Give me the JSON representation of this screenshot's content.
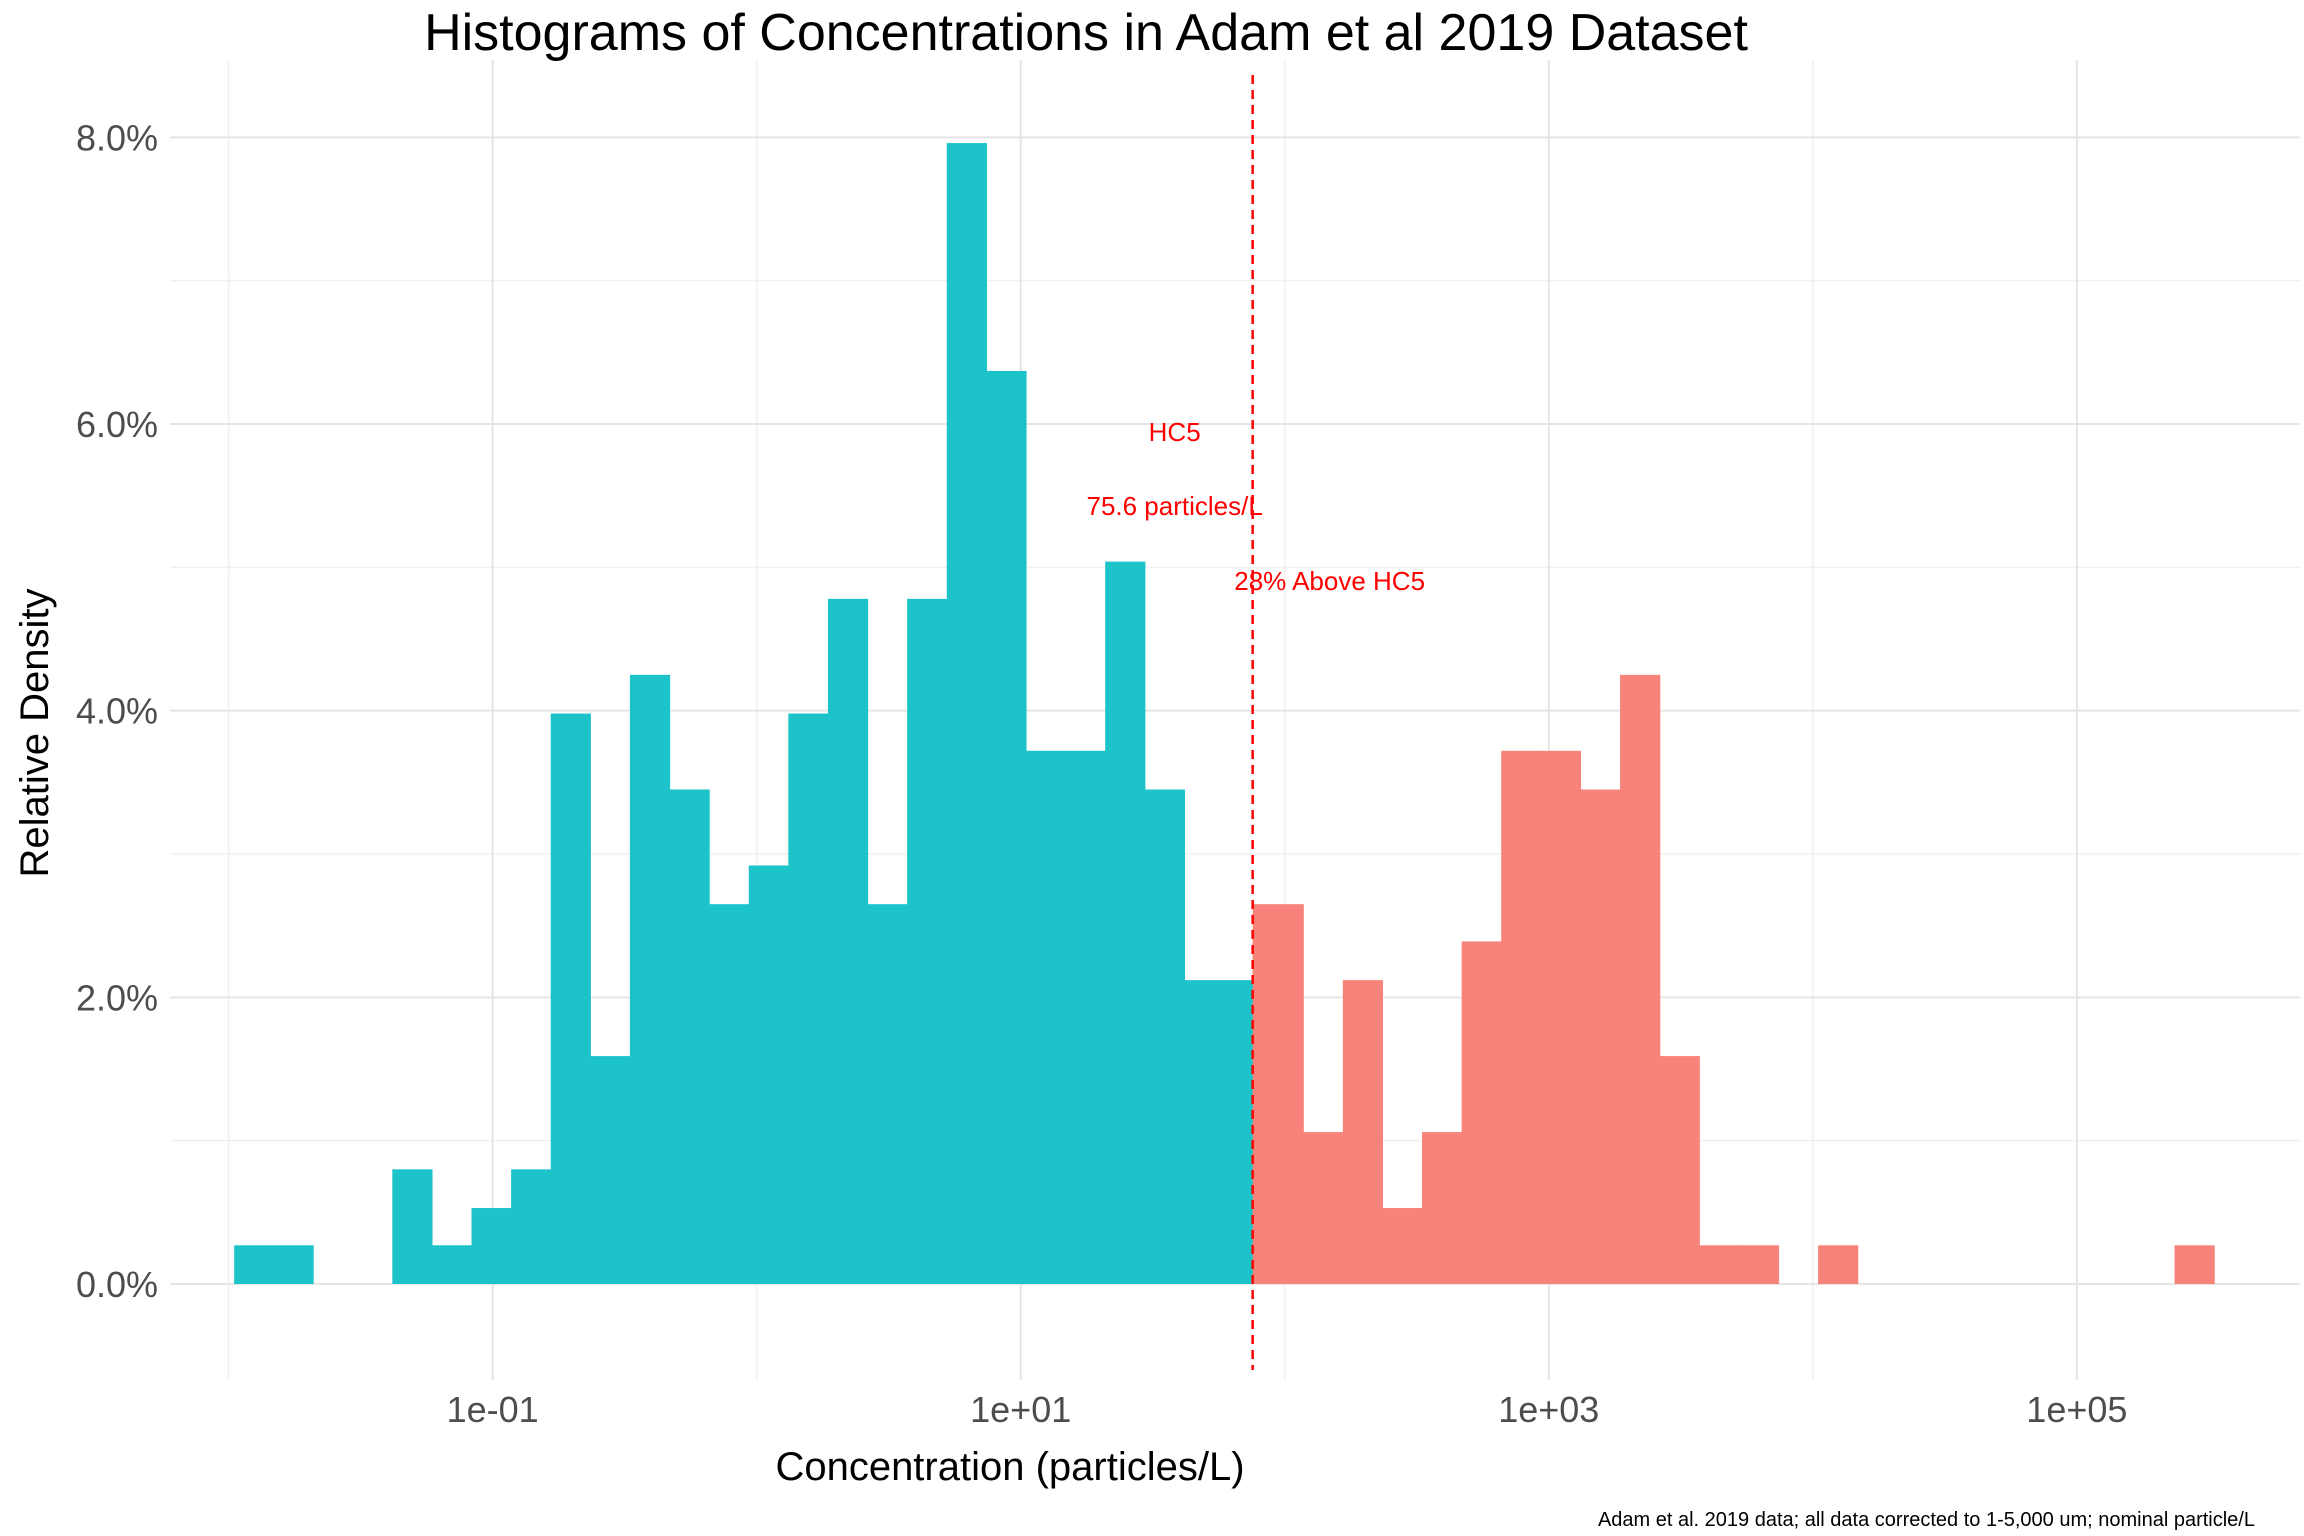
{
  "chart_data": {
    "type": "bar",
    "title": "Histograms of Concentrations in Adam et al 2019 Dataset",
    "xlabel": "Concentration (particles/L)",
    "ylabel": "Relative Density",
    "caption": "Adam et al. 2019 data; all data corrected to 1-5,000 um; nominal particle/L",
    "x_scale": "log10",
    "xlim": [
      0.006,
      700000
    ],
    "ylim": [
      -0.006,
      0.084
    ],
    "grid": true,
    "legend": "none",
    "x_ticks": [
      {
        "value": 0.1,
        "label": "1e-01"
      },
      {
        "value": 10,
        "label": "1e+01"
      },
      {
        "value": 1000,
        "label": "1e+03"
      },
      {
        "value": 100000,
        "label": "1e+05"
      }
    ],
    "y_ticks": [
      {
        "value": 0.0,
        "label": "0.0%"
      },
      {
        "value": 0.02,
        "label": "2.0%"
      },
      {
        "value": 0.04,
        "label": "4.0%"
      },
      {
        "value": 0.06,
        "label": "6.0%"
      },
      {
        "value": 0.08,
        "label": "8.0%"
      }
    ],
    "bin_width_log10": 0.15,
    "series": [
      {
        "color": "#1CC3C9",
        "bins": [
          {
            "x0": 0.0105,
            "x1": 0.0148,
            "value": 0.0027
          },
          {
            "x0": 0.0148,
            "x1": 0.0209,
            "value": 0.0027
          },
          {
            "x0": 0.0417,
            "x1": 0.0589,
            "value": 0.008
          },
          {
            "x0": 0.0589,
            "x1": 0.0832,
            "value": 0.0027
          },
          {
            "x0": 0.0832,
            "x1": 0.1175,
            "value": 0.0053
          },
          {
            "x0": 0.1175,
            "x1": 0.166,
            "value": 0.008
          },
          {
            "x0": 0.166,
            "x1": 0.2344,
            "value": 0.0398
          },
          {
            "x0": 0.2344,
            "x1": 0.3311,
            "value": 0.0159
          },
          {
            "x0": 0.3311,
            "x1": 0.4677,
            "value": 0.0425
          },
          {
            "x0": 0.4677,
            "x1": 0.6607,
            "value": 0.0345
          },
          {
            "x0": 0.6607,
            "x1": 0.9333,
            "value": 0.0265
          },
          {
            "x0": 0.9333,
            "x1": 1.318,
            "value": 0.0292
          },
          {
            "x0": 1.318,
            "x1": 1.862,
            "value": 0.0398
          },
          {
            "x0": 1.862,
            "x1": 2.63,
            "value": 0.0478
          },
          {
            "x0": 2.63,
            "x1": 3.715,
            "value": 0.0265
          },
          {
            "x0": 3.715,
            "x1": 5.248,
            "value": 0.0478
          },
          {
            "x0": 5.248,
            "x1": 7.413,
            "value": 0.0796
          },
          {
            "x0": 7.413,
            "x1": 10.47,
            "value": 0.0637
          },
          {
            "x0": 10.47,
            "x1": 14.79,
            "value": 0.0372
          },
          {
            "x0": 14.79,
            "x1": 20.89,
            "value": 0.0372
          },
          {
            "x0": 20.89,
            "x1": 29.51,
            "value": 0.0504
          },
          {
            "x0": 29.51,
            "x1": 41.69,
            "value": 0.0345
          },
          {
            "x0": 41.69,
            "x1": 58.88,
            "value": 0.0212
          },
          {
            "x0": 58.88,
            "x1": 75.6,
            "value": 0.0212
          }
        ]
      },
      {
        "color": "#F8837B",
        "bins": [
          {
            "x0": 75.6,
            "x1": 117.5,
            "value": 0.0265
          },
          {
            "x0": 117.5,
            "x1": 166.0,
            "value": 0.0106
          },
          {
            "x0": 166.0,
            "x1": 234.4,
            "value": 0.0212
          },
          {
            "x0": 234.4,
            "x1": 331.1,
            "value": 0.0053
          },
          {
            "x0": 331.1,
            "x1": 467.7,
            "value": 0.0106
          },
          {
            "x0": 467.7,
            "x1": 660.7,
            "value": 0.0239
          },
          {
            "x0": 660.7,
            "x1": 933.3,
            "value": 0.0372
          },
          {
            "x0": 933.3,
            "x1": 1318,
            "value": 0.0372
          },
          {
            "x0": 1318,
            "x1": 1862,
            "value": 0.0345
          },
          {
            "x0": 1862,
            "x1": 2630,
            "value": 0.0425
          },
          {
            "x0": 2630,
            "x1": 3715,
            "value": 0.0159
          },
          {
            "x0": 3715,
            "x1": 5248,
            "value": 0.0027
          },
          {
            "x0": 5248,
            "x1": 7413,
            "value": 0.0027
          },
          {
            "x0": 10470,
            "x1": 14790,
            "value": 0.0027
          },
          {
            "x0": 234400,
            "x1": 331100,
            "value": 0.0027
          }
        ]
      }
    ],
    "reference_line": {
      "value": 75.6,
      "color": "#FF0000",
      "style": "dashed",
      "labels": [
        "HC5",
        "75.6 particles/L",
        "28% Above HC5"
      ]
    }
  }
}
